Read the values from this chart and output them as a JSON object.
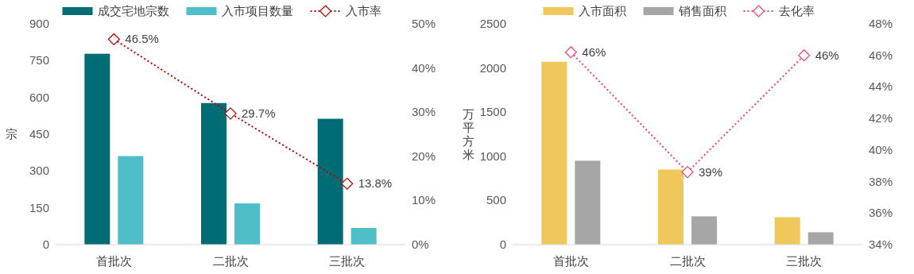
{
  "chart_data": [
    {
      "type": "bar",
      "categories": [
        "首批次",
        "二批次",
        "三批次"
      ],
      "ylabel": "宗",
      "ylim": [
        0,
        900
      ],
      "yticks": [
        0,
        150,
        300,
        450,
        600,
        750,
        900
      ],
      "y2lim": [
        0,
        50
      ],
      "y2ticks": [
        {
          "value": 0,
          "label": "0%"
        },
        {
          "value": 10,
          "label": "10%"
        },
        {
          "value": 20,
          "label": "20%"
        },
        {
          "value": 30,
          "label": "30%"
        },
        {
          "value": 40,
          "label": "40%"
        },
        {
          "value": 50,
          "label": "50%"
        }
      ],
      "legend": "top",
      "grid": false,
      "series": [
        {
          "name": "成交宅地宗数",
          "color": "#006d75",
          "values": [
            778,
            577,
            513
          ]
        },
        {
          "name": "入市项目数量",
          "color": "#4fbec8",
          "values": [
            361,
            168,
            68
          ]
        },
        {
          "name": "入市率",
          "type": "line",
          "axis": "y2",
          "color": "#c00000",
          "marker": "diamond",
          "line_style": "dotted",
          "values": [
            46.5,
            29.7,
            13.8
          ],
          "value_labels": [
            "46.5%",
            "29.7%",
            "13.8%"
          ]
        }
      ]
    },
    {
      "type": "bar",
      "categories": [
        "首批次",
        "二批次",
        "三批次"
      ],
      "ylabel": "万平方米",
      "ylim": [
        0,
        2500
      ],
      "yticks": [
        0,
        500,
        1000,
        1500,
        2000,
        2500
      ],
      "y2lim": [
        34,
        48
      ],
      "y2ticks": [
        {
          "value": 34,
          "label": "34%"
        },
        {
          "value": 36,
          "label": "36%"
        },
        {
          "value": 38,
          "label": "38%"
        },
        {
          "value": 40,
          "label": "40%"
        },
        {
          "value": 42,
          "label": "42%"
        },
        {
          "value": 44,
          "label": "44%"
        },
        {
          "value": 46,
          "label": "46%"
        },
        {
          "value": 48,
          "label": "48%"
        }
      ],
      "legend": "top",
      "grid": false,
      "series": [
        {
          "name": "入市面积",
          "color": "#f0c75a",
          "values": [
            2070,
            850,
            310
          ]
        },
        {
          "name": "销售面积",
          "color": "#a6a6a6",
          "values": [
            950,
            320,
            140
          ]
        },
        {
          "name": "去化率",
          "type": "line",
          "axis": "y2",
          "color": "#f0436e",
          "marker": "diamond",
          "line_style": "dotted",
          "values": [
            46.2,
            38.6,
            46.0
          ],
          "value_labels": [
            "46%",
            "39%",
            "46%"
          ]
        }
      ]
    }
  ]
}
